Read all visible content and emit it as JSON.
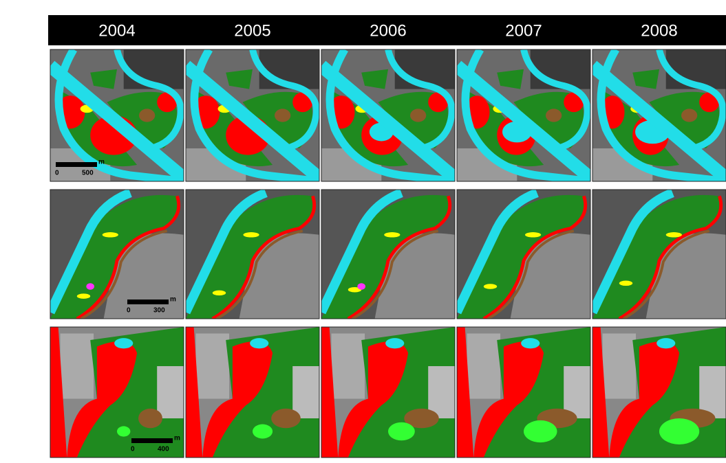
{
  "header": {
    "years": [
      "2004",
      "2005",
      "2006",
      "2007",
      "2008"
    ]
  },
  "scale_bars": [
    {
      "zero": "0",
      "distance": "500",
      "unit": "m"
    },
    {
      "zero": "0",
      "distance": "300",
      "unit": "m"
    },
    {
      "zero": "0",
      "distance": "400",
      "unit": "m"
    }
  ]
}
